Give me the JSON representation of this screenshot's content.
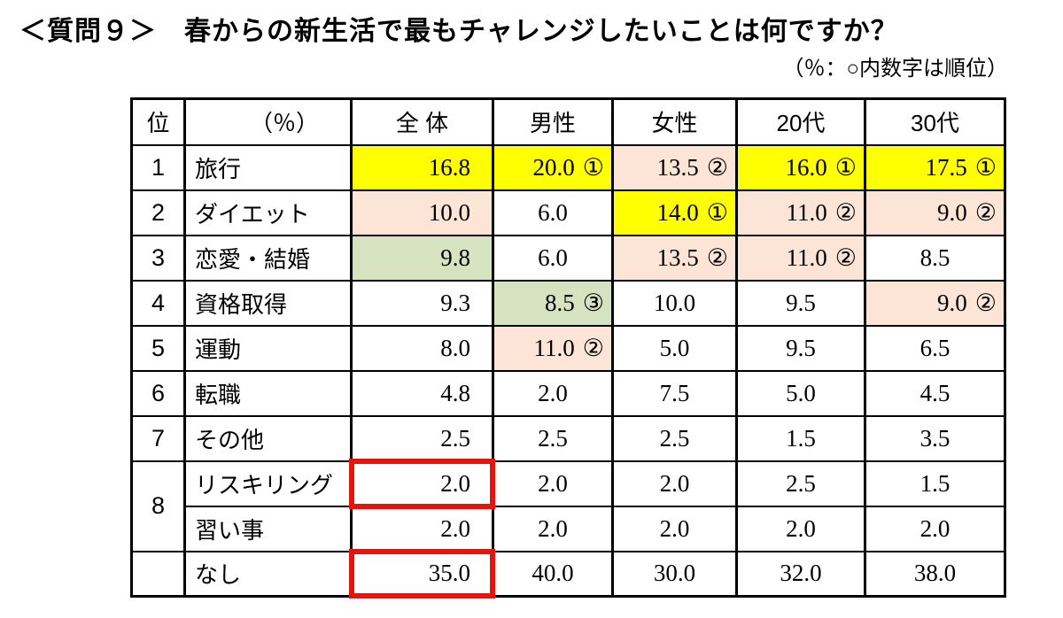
{
  "chart_data": {
    "type": "table",
    "title": "＜質問９＞　春からの新生活で最もチャレンジしたいことは何ですか？",
    "note": "（％：○内数字は順位）",
    "unit": "%",
    "rank_header": "位",
    "item_header": "（％）",
    "columns": [
      "全 体",
      "男性",
      "女性",
      "20代",
      "30代"
    ],
    "rows": [
      {
        "rank": "1",
        "item": "旅行",
        "cells": [
          {
            "v": "16.8",
            "bg": "y"
          },
          {
            "v": "20.0",
            "c": "①",
            "bg": "y"
          },
          {
            "v": "13.5",
            "c": "②",
            "bg": "p"
          },
          {
            "v": "16.0",
            "c": "①",
            "bg": "y"
          },
          {
            "v": "17.5",
            "c": "①",
            "bg": "y"
          }
        ]
      },
      {
        "rank": "2",
        "item": "ダイエット",
        "cells": [
          {
            "v": "10.0",
            "bg": "p"
          },
          {
            "v": "6.0"
          },
          {
            "v": "14.0",
            "c": "①",
            "bg": "y"
          },
          {
            "v": "11.0",
            "c": "②",
            "bg": "p"
          },
          {
            "v": "9.0",
            "c": "②",
            "bg": "p"
          }
        ]
      },
      {
        "rank": "3",
        "item": "恋愛・結婚",
        "cells": [
          {
            "v": "9.8",
            "bg": "g"
          },
          {
            "v": "6.0"
          },
          {
            "v": "13.5",
            "c": "②",
            "bg": "p"
          },
          {
            "v": "11.0",
            "c": "②",
            "bg": "p"
          },
          {
            "v": "8.5"
          }
        ]
      },
      {
        "rank": "4",
        "item": "資格取得",
        "cells": [
          {
            "v": "9.3"
          },
          {
            "v": "8.5",
            "c": "③",
            "bg": "g"
          },
          {
            "v": "10.0"
          },
          {
            "v": "9.5"
          },
          {
            "v": "9.0",
            "c": "②",
            "bg": "p"
          }
        ]
      },
      {
        "rank": "5",
        "item": "運動",
        "cells": [
          {
            "v": "8.0"
          },
          {
            "v": "11.0",
            "c": "②",
            "bg": "p"
          },
          {
            "v": "5.0"
          },
          {
            "v": "9.5"
          },
          {
            "v": "6.5"
          }
        ]
      },
      {
        "rank": "6",
        "item": "転職",
        "cells": [
          {
            "v": "4.8"
          },
          {
            "v": "2.0"
          },
          {
            "v": "7.5"
          },
          {
            "v": "5.0"
          },
          {
            "v": "4.5"
          }
        ]
      },
      {
        "rank": "7",
        "item": "その他",
        "cells": [
          {
            "v": "2.5"
          },
          {
            "v": "2.5"
          },
          {
            "v": "2.5"
          },
          {
            "v": "1.5"
          },
          {
            "v": "3.5"
          }
        ]
      },
      {
        "rank": "8",
        "rowspan": 2,
        "item": "リスキリング",
        "cells": [
          {
            "v": "2.0",
            "box": true
          },
          {
            "v": "2.0"
          },
          {
            "v": "2.0"
          },
          {
            "v": "2.5"
          },
          {
            "v": "1.5"
          }
        ]
      },
      {
        "rank": null,
        "item": "習い事",
        "cells": [
          {
            "v": "2.0"
          },
          {
            "v": "2.0"
          },
          {
            "v": "2.0"
          },
          {
            "v": "2.0"
          },
          {
            "v": "2.0"
          }
        ]
      },
      {
        "rank": "",
        "item": "なし",
        "cells": [
          {
            "v": "35.0",
            "box": true
          },
          {
            "v": "40.0"
          },
          {
            "v": "30.0"
          },
          {
            "v": "32.0"
          },
          {
            "v": "38.0"
          }
        ]
      }
    ],
    "highlight_colors": {
      "rank1": "#FFFF00",
      "rank2": "#FCE4D6",
      "rank3": "#D6E3C0"
    },
    "highlight_box_color": "#E8140C"
  }
}
